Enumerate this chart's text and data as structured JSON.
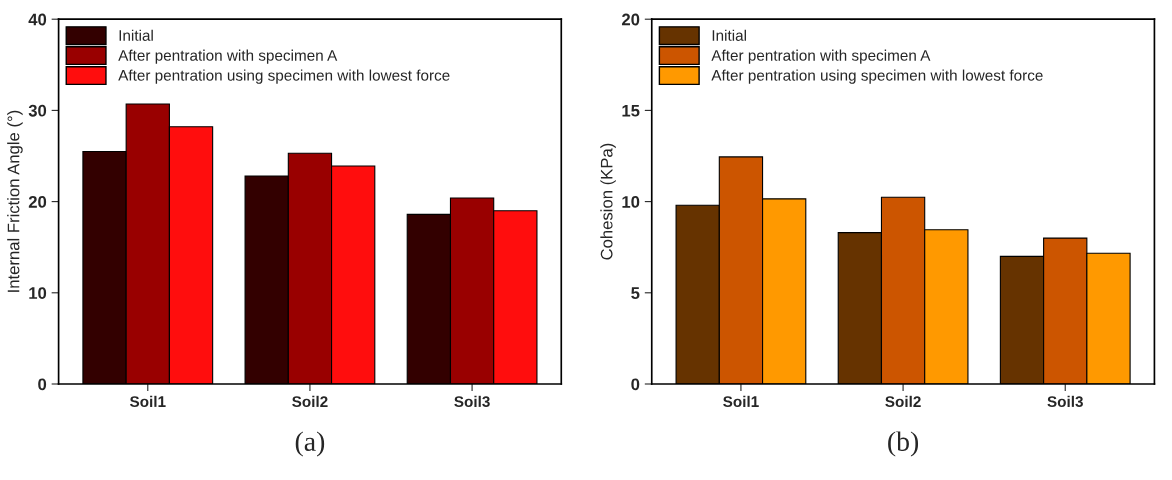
{
  "chart_data": [
    {
      "type": "bar",
      "ylabel": "Internal Friction Angle (°)",
      "categories": [
        "Soil1",
        "Soil2",
        "Soil3"
      ],
      "series": [
        {
          "name": "Initial",
          "color": "#330000",
          "values": [
            25.5,
            22.8,
            18.6
          ]
        },
        {
          "name": "After pentration with specimen A",
          "color": "#990000",
          "values": [
            30.7,
            25.3,
            20.4
          ]
        },
        {
          "name": "After pentration using specimen with lowest force",
          "color": "#ff0d0d",
          "values": [
            28.2,
            23.9,
            19.0
          ]
        }
      ],
      "ylim": [
        0,
        40
      ],
      "yticks": [
        0,
        10,
        20,
        30,
        40
      ],
      "grid": false,
      "legend": "top left",
      "annotations": [
        "(a)"
      ]
    },
    {
      "type": "bar",
      "ylabel": "Cohesion (KPa)",
      "categories": [
        "Soil1",
        "Soil2",
        "Soil3"
      ],
      "series": [
        {
          "name": "Initial",
          "color": "#663300",
          "values": [
            9.8,
            8.3,
            7.0
          ]
        },
        {
          "name": "After pentration with specimen A",
          "color": "#cc5500",
          "values": [
            12.45,
            10.24,
            8.0
          ]
        },
        {
          "name": "After pentration using specimen with lowest force",
          "color": "#ff9900",
          "values": [
            10.15,
            8.46,
            7.17
          ]
        }
      ],
      "ylim": [
        0,
        20
      ],
      "yticks": [
        0,
        5,
        10,
        15,
        20
      ],
      "grid": false,
      "legend": "top left",
      "annotations": [
        "(b)"
      ]
    }
  ]
}
